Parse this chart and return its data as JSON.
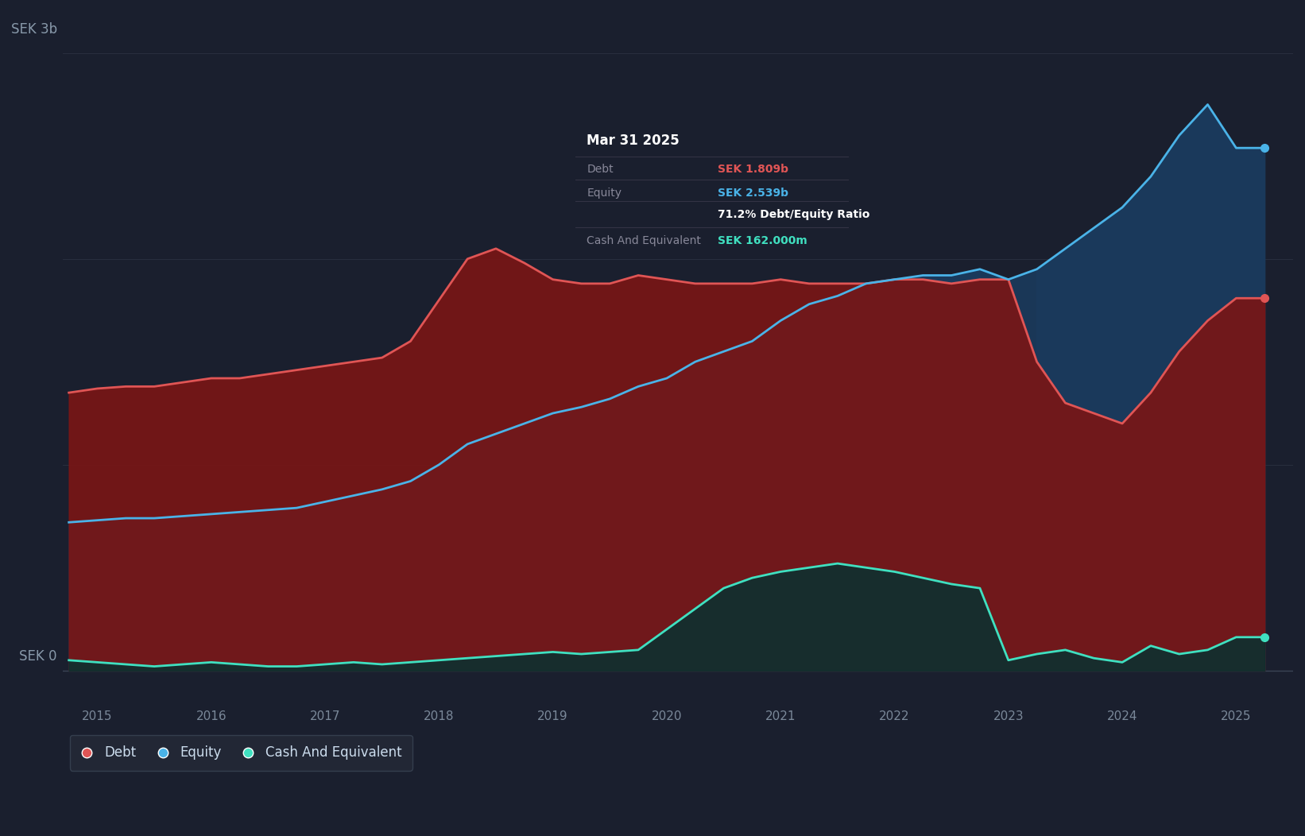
{
  "background_color": "#1a1f2e",
  "plot_bg_color": "#1a1f2e",
  "grid_color": "#2a3040",
  "debt_color": "#e05555",
  "equity_color": "#4ab3e8",
  "cash_color": "#40e0c0",
  "debt_fill_color": "#7a1515",
  "equity_fill_color": "#1a3a5c",
  "cash_fill_color": "#0d3030",
  "tooltip_title": "Mar 31 2025",
  "tooltip_debt_label": "Debt",
  "tooltip_debt_value": "SEK 1.809b",
  "tooltip_equity_label": "Equity",
  "tooltip_equity_value": "SEK 2.539b",
  "tooltip_ratio": "71.2% Debt/Equity Ratio",
  "tooltip_cash_label": "Cash And Equivalent",
  "tooltip_cash_value": "SEK 162.000m",
  "ylim": [
    -0.15,
    3.2
  ],
  "xlim_start": 2014.7,
  "xlim_end": 2025.5,
  "time_points": [
    2014.75,
    2015.0,
    2015.25,
    2015.5,
    2015.75,
    2016.0,
    2016.25,
    2016.5,
    2016.75,
    2017.0,
    2017.25,
    2017.5,
    2017.75,
    2018.0,
    2018.25,
    2018.5,
    2018.75,
    2019.0,
    2019.25,
    2019.5,
    2019.75,
    2020.0,
    2020.25,
    2020.5,
    2020.75,
    2021.0,
    2021.25,
    2021.5,
    2021.75,
    2022.0,
    2022.25,
    2022.5,
    2022.75,
    2023.0,
    2023.25,
    2023.5,
    2023.75,
    2024.0,
    2024.25,
    2024.5,
    2024.75,
    2025.0,
    2025.25
  ],
  "debt_values": [
    1.35,
    1.37,
    1.38,
    1.38,
    1.4,
    1.42,
    1.42,
    1.44,
    1.46,
    1.48,
    1.5,
    1.52,
    1.6,
    1.8,
    2.0,
    2.05,
    1.98,
    1.9,
    1.88,
    1.88,
    1.92,
    1.9,
    1.88,
    1.88,
    1.88,
    1.9,
    1.88,
    1.88,
    1.88,
    1.9,
    1.9,
    1.88,
    1.9,
    1.9,
    1.5,
    1.3,
    1.25,
    1.2,
    1.35,
    1.55,
    1.7,
    1.809,
    1.809
  ],
  "equity_values": [
    0.72,
    0.73,
    0.74,
    0.74,
    0.75,
    0.76,
    0.77,
    0.78,
    0.79,
    0.82,
    0.85,
    0.88,
    0.92,
    1.0,
    1.1,
    1.15,
    1.2,
    1.25,
    1.28,
    1.32,
    1.38,
    1.42,
    1.5,
    1.55,
    1.6,
    1.7,
    1.78,
    1.82,
    1.88,
    1.9,
    1.92,
    1.92,
    1.95,
    1.9,
    1.95,
    2.05,
    2.15,
    2.25,
    2.4,
    2.6,
    2.75,
    2.539,
    2.539
  ],
  "cash_values": [
    0.05,
    0.04,
    0.03,
    0.02,
    0.03,
    0.04,
    0.03,
    0.02,
    0.02,
    0.03,
    0.04,
    0.03,
    0.04,
    0.05,
    0.06,
    0.07,
    0.08,
    0.09,
    0.08,
    0.09,
    0.1,
    0.2,
    0.3,
    0.4,
    0.45,
    0.48,
    0.5,
    0.52,
    0.5,
    0.48,
    0.45,
    0.42,
    0.4,
    0.05,
    0.08,
    0.1,
    0.06,
    0.04,
    0.12,
    0.08,
    0.1,
    0.162,
    0.162
  ]
}
